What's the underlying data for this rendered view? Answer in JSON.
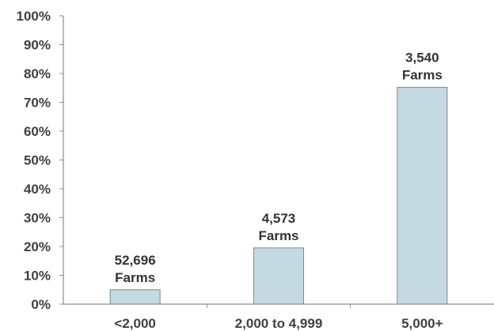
{
  "chart_data": {
    "type": "bar",
    "title": "",
    "xlabel": "",
    "ylabel": "",
    "categories": [
      "<2,000",
      "2,000 to 4,999",
      "5,000+"
    ],
    "values": [
      5,
      19.5,
      75.2
    ],
    "value_unit": "%",
    "ylim": [
      0,
      100
    ],
    "yticks": [
      "0%",
      "10%",
      "20%",
      "30%",
      "40%",
      "50%",
      "60%",
      "70%",
      "80%",
      "90%",
      "100%"
    ],
    "data_labels": [
      [
        "52,696",
        "Farms"
      ],
      [
        "4,573",
        "Farms"
      ],
      [
        "3,540",
        "Farms"
      ]
    ],
    "grid": false,
    "legend": "none",
    "bar_fill": "#c5d9e2",
    "bar_stroke": "#7a8a90",
    "axis_color": "#8c8c8c"
  }
}
